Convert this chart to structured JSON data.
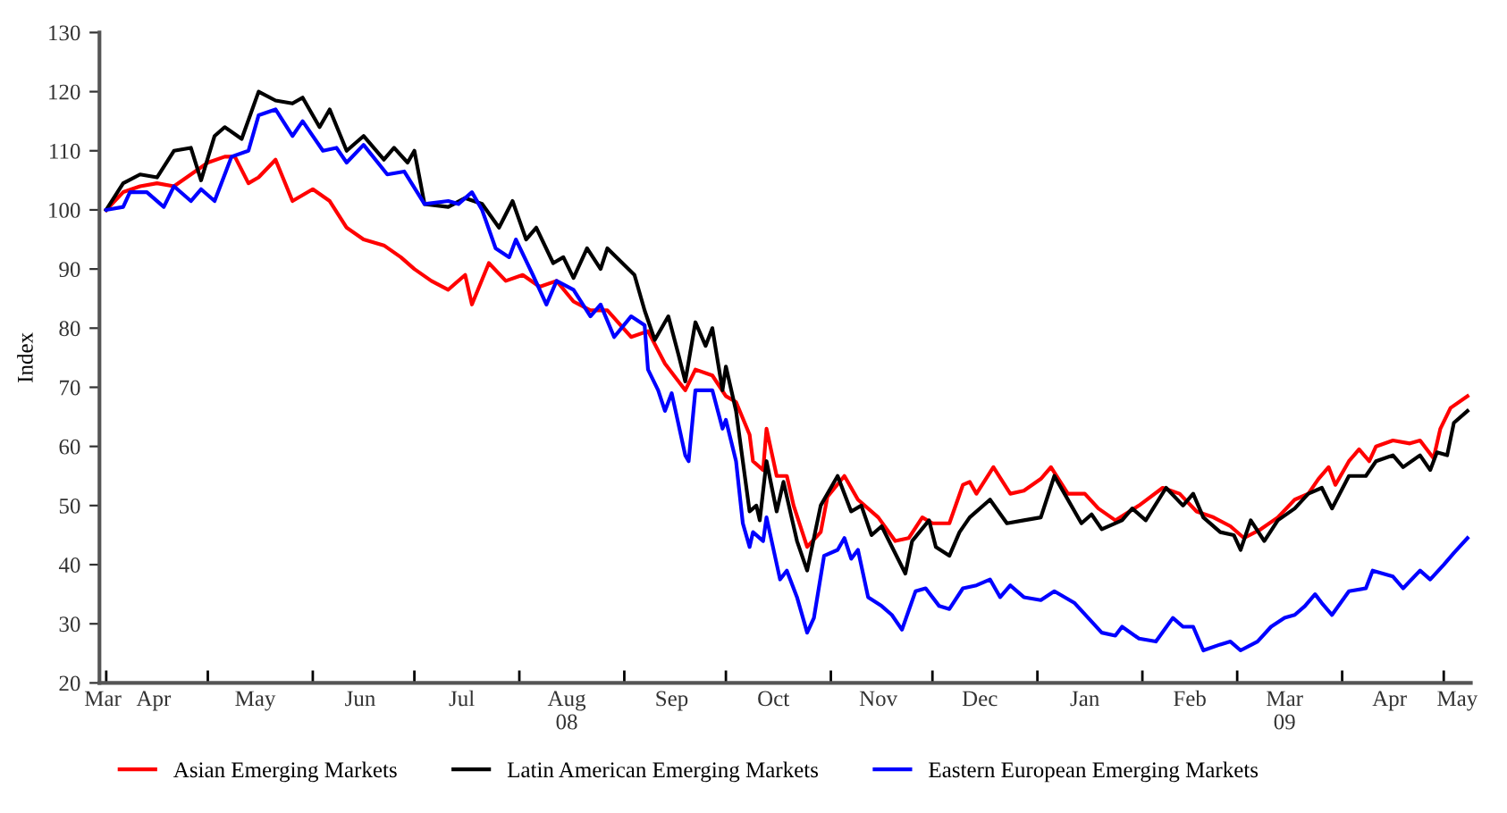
{
  "chart_data": {
    "type": "line",
    "ylabel": "Index",
    "ylim": [
      20,
      130
    ],
    "yticks": [
      20,
      30,
      40,
      50,
      60,
      70,
      80,
      90,
      100,
      110,
      120,
      130
    ],
    "xlim": [
      "2008-03-30",
      "2009-05-09"
    ],
    "xticks": [
      {
        "value": "2008-03-31",
        "label": "Mar"
      },
      {
        "value": "2008-04-15",
        "label": "Apr"
      },
      {
        "value": "2008-05-15",
        "label": "May"
      },
      {
        "value": "2008-06-15",
        "label": "Jun"
      },
      {
        "value": "2008-07-15",
        "label": "Jul"
      },
      {
        "value": "2008-08-15",
        "label": "Aug\n08"
      },
      {
        "value": "2008-09-15",
        "label": "Sep"
      },
      {
        "value": "2008-10-15",
        "label": "Oct"
      },
      {
        "value": "2008-11-15",
        "label": "Nov"
      },
      {
        "value": "2008-12-15",
        "label": "Dec"
      },
      {
        "value": "2009-01-15",
        "label": "Jan"
      },
      {
        "value": "2009-02-15",
        "label": "Feb"
      },
      {
        "value": "2009-03-15",
        "label": "Mar\n09"
      },
      {
        "value": "2009-04-15",
        "label": "Apr"
      },
      {
        "value": "2009-05-05",
        "label": "May"
      },
      {
        "value": "2008-04-01",
        "label": null
      },
      {
        "value": "2008-05-01",
        "label": null
      },
      {
        "value": "2008-06-01",
        "label": null
      },
      {
        "value": "2008-07-01",
        "label": null
      },
      {
        "value": "2008-08-01",
        "label": null
      },
      {
        "value": "2008-09-01",
        "label": null
      },
      {
        "value": "2008-10-01",
        "label": null
      },
      {
        "value": "2008-11-01",
        "label": null
      },
      {
        "value": "2008-12-01",
        "label": null
      },
      {
        "value": "2009-01-01",
        "label": null
      },
      {
        "value": "2009-02-01",
        "label": null
      },
      {
        "value": "2009-03-01",
        "label": null
      },
      {
        "value": "2009-04-01",
        "label": null
      },
      {
        "value": "2009-05-01",
        "label": null
      }
    ],
    "grid": false,
    "legend": "bottom",
    "marker": "none",
    "line_style": "solid",
    "series": [
      {
        "name": "Asian Emerging Markets",
        "color": "#ff0000",
        "x": [
          "2008-04-01",
          "2008-04-06",
          "2008-04-11",
          "2008-04-16",
          "2008-04-21",
          "2008-04-26",
          "2008-05-01",
          "2008-05-06",
          "2008-05-09",
          "2008-05-13",
          "2008-05-16",
          "2008-05-21",
          "2008-05-26",
          "2008-06-01",
          "2008-06-06",
          "2008-06-11",
          "2008-06-16",
          "2008-06-22",
          "2008-06-27",
          "2008-07-01",
          "2008-07-06",
          "2008-07-11",
          "2008-07-16",
          "2008-07-18",
          "2008-07-23",
          "2008-07-28",
          "2008-08-02",
          "2008-08-07",
          "2008-08-12",
          "2008-08-17",
          "2008-08-22",
          "2008-08-27",
          "2008-09-03",
          "2008-09-08",
          "2008-09-13",
          "2008-09-19",
          "2008-09-22",
          "2008-09-27",
          "2008-10-01",
          "2008-10-04",
          "2008-10-08",
          "2008-10-09",
          "2008-10-12",
          "2008-10-13",
          "2008-10-16",
          "2008-10-19",
          "2008-10-21",
          "2008-10-25",
          "2008-10-29",
          "2008-10-31",
          "2008-11-05",
          "2008-11-09",
          "2008-11-15",
          "2008-11-20",
          "2008-11-24",
          "2008-11-28",
          "2008-12-01",
          "2008-12-06",
          "2008-12-10",
          "2008-12-12",
          "2008-12-14",
          "2008-12-19",
          "2008-12-24",
          "2008-12-28",
          "2009-01-02",
          "2009-01-05",
          "2009-01-10",
          "2009-01-15",
          "2009-01-19",
          "2009-01-24",
          "2009-01-31",
          "2009-02-07",
          "2009-02-12",
          "2009-02-17",
          "2009-02-22",
          "2009-02-27",
          "2009-03-03",
          "2009-03-08",
          "2009-03-13",
          "2009-03-18",
          "2009-03-22",
          "2009-03-25",
          "2009-03-28",
          "2009-03-30",
          "2009-04-03",
          "2009-04-06",
          "2009-04-09",
          "2009-04-11",
          "2009-04-16",
          "2009-04-21",
          "2009-04-24",
          "2009-04-28",
          "2009-04-30",
          "2009-05-03",
          "2009-05-08"
        ],
        "values": [
          100,
          103,
          104,
          104.5,
          104,
          106,
          108,
          109,
          109,
          104.5,
          105.5,
          108.5,
          101.5,
          103.5,
          101.5,
          97,
          95,
          94,
          92,
          90,
          88,
          86.5,
          89,
          84,
          91,
          88,
          89,
          87,
          88,
          84.5,
          83,
          83,
          78.5,
          79.5,
          74,
          69.5,
          73,
          72,
          68.5,
          67.5,
          62,
          57.5,
          56,
          63,
          55,
          55,
          50,
          43,
          45.5,
          51.5,
          55,
          51,
          48,
          44,
          44.5,
          48,
          47,
          47,
          53.5,
          54,
          52,
          56.5,
          52,
          52.5,
          54.5,
          56.5,
          52,
          52,
          49.5,
          47.5,
          50,
          53,
          52,
          49,
          48,
          46.5,
          44.5,
          46,
          48,
          51,
          52,
          54.5,
          56.5,
          53.5,
          57.5,
          59.5,
          57.5,
          60,
          61,
          60.5,
          61,
          58,
          63,
          66.5,
          68.5
        ]
      },
      {
        "name": "Latin American Emerging Markets",
        "color": "#000000",
        "x": [
          "2008-04-01",
          "2008-04-06",
          "2008-04-11",
          "2008-04-16",
          "2008-04-21",
          "2008-04-26",
          "2008-04-29",
          "2008-05-03",
          "2008-05-06",
          "2008-05-11",
          "2008-05-16",
          "2008-05-21",
          "2008-05-26",
          "2008-05-29",
          "2008-06-03",
          "2008-06-06",
          "2008-06-11",
          "2008-06-16",
          "2008-06-22",
          "2008-06-25",
          "2008-06-29",
          "2008-07-01",
          "2008-07-04",
          "2008-07-11",
          "2008-07-16",
          "2008-07-21",
          "2008-07-26",
          "2008-07-30",
          "2008-08-03",
          "2008-08-06",
          "2008-08-11",
          "2008-08-14",
          "2008-08-17",
          "2008-08-21",
          "2008-08-25",
          "2008-08-27",
          "2008-09-04",
          "2008-09-07",
          "2008-09-10",
          "2008-09-14",
          "2008-09-17",
          "2008-09-19",
          "2008-09-22",
          "2008-09-25",
          "2008-09-27",
          "2008-09-30",
          "2008-10-01",
          "2008-10-04",
          "2008-10-08",
          "2008-10-10",
          "2008-10-11",
          "2008-10-13",
          "2008-10-16",
          "2008-10-18",
          "2008-10-22",
          "2008-10-25",
          "2008-10-29",
          "2008-11-03",
          "2008-11-07",
          "2008-11-10",
          "2008-11-13",
          "2008-11-16",
          "2008-11-23",
          "2008-11-25",
          "2008-11-30",
          "2008-12-02",
          "2008-12-06",
          "2008-12-09",
          "2008-12-12",
          "2008-12-18",
          "2008-12-23",
          "2008-12-28",
          "2009-01-02",
          "2009-01-06",
          "2009-01-09",
          "2009-01-14",
          "2009-01-17",
          "2009-01-20",
          "2009-01-26",
          "2009-01-29",
          "2009-02-02",
          "2009-02-08",
          "2009-02-13",
          "2009-02-16",
          "2009-02-19",
          "2009-02-24",
          "2009-02-28",
          "2009-03-02",
          "2009-03-05",
          "2009-03-09",
          "2009-03-13",
          "2009-03-18",
          "2009-03-22",
          "2009-03-26",
          "2009-03-29",
          "2009-04-03",
          "2009-04-08",
          "2009-04-11",
          "2009-04-16",
          "2009-04-19",
          "2009-04-24",
          "2009-04-27",
          "2009-04-29",
          "2009-05-02",
          "2009-05-04",
          "2009-05-08"
        ],
        "values": [
          100,
          104.5,
          106,
          105.5,
          110,
          110.5,
          105,
          112.5,
          114,
          112,
          120,
          118.5,
          118,
          119,
          114,
          117,
          110,
          112.5,
          108.5,
          110.5,
          108,
          110,
          101,
          100.5,
          102,
          101,
          97,
          101.5,
          95,
          97,
          91,
          92,
          88.5,
          93.5,
          90,
          93.5,
          89,
          83,
          78,
          82,
          75.5,
          71,
          81,
          77,
          80,
          69.5,
          73.5,
          66,
          49,
          50,
          47.5,
          57.5,
          49,
          54,
          44,
          39,
          50,
          55,
          49,
          50,
          45,
          46.5,
          38.5,
          44,
          47.5,
          43,
          41.5,
          45.5,
          48,
          51,
          47,
          47.5,
          48,
          55,
          52,
          47,
          48.5,
          46,
          47.5,
          49.5,
          47.5,
          53,
          50,
          52,
          48,
          45.5,
          45,
          42.5,
          47.5,
          44,
          47.5,
          49.5,
          52,
          53,
          49.5,
          55,
          55,
          57.5,
          58.5,
          56.5,
          58.5,
          56,
          59,
          58.5,
          64,
          66
        ]
      },
      {
        "name": "Eastern European Emerging Markets",
        "color": "#0000ff",
        "x": [
          "2008-04-01",
          "2008-04-06",
          "2008-04-08",
          "2008-04-13",
          "2008-04-18",
          "2008-04-21",
          "2008-04-26",
          "2008-04-29",
          "2008-05-03",
          "2008-05-08",
          "2008-05-13",
          "2008-05-16",
          "2008-05-21",
          "2008-05-26",
          "2008-05-29",
          "2008-06-04",
          "2008-06-08",
          "2008-06-11",
          "2008-06-16",
          "2008-06-23",
          "2008-06-28",
          "2008-07-04",
          "2008-07-11",
          "2008-07-14",
          "2008-07-18",
          "2008-07-21",
          "2008-07-25",
          "2008-07-29",
          "2008-07-31",
          "2008-08-05",
          "2008-08-09",
          "2008-08-12",
          "2008-08-17",
          "2008-08-22",
          "2008-08-25",
          "2008-08-29",
          "2008-09-03",
          "2008-09-07",
          "2008-09-08",
          "2008-09-11",
          "2008-09-13",
          "2008-09-15",
          "2008-09-19",
          "2008-09-20",
          "2008-09-22",
          "2008-09-27",
          "2008-09-30",
          "2008-10-01",
          "2008-10-04",
          "2008-10-06",
          "2008-10-08",
          "2008-10-09",
          "2008-10-12",
          "2008-10-13",
          "2008-10-17",
          "2008-10-19",
          "2008-10-22",
          "2008-10-25",
          "2008-10-27",
          "2008-10-30",
          "2008-11-03",
          "2008-11-05",
          "2008-11-07",
          "2008-11-09",
          "2008-11-12",
          "2008-11-16",
          "2008-11-19",
          "2008-11-22",
          "2008-11-26",
          "2008-11-29",
          "2008-12-03",
          "2008-12-06",
          "2008-12-10",
          "2008-12-14",
          "2008-12-18",
          "2008-12-21",
          "2008-12-24",
          "2008-12-28",
          "2009-01-02",
          "2009-01-06",
          "2009-01-12",
          "2009-01-16",
          "2009-01-20",
          "2009-01-24",
          "2009-01-26",
          "2009-01-31",
          "2009-02-05",
          "2009-02-10",
          "2009-02-13",
          "2009-02-16",
          "2009-02-19",
          "2009-02-24",
          "2009-02-27",
          "2009-03-02",
          "2009-03-07",
          "2009-03-11",
          "2009-03-15",
          "2009-03-18",
          "2009-03-21",
          "2009-03-24",
          "2009-03-26",
          "2009-03-29",
          "2009-04-03",
          "2009-04-08",
          "2009-04-10",
          "2009-04-16",
          "2009-04-19",
          "2009-04-24",
          "2009-04-27",
          "2009-05-01",
          "2009-05-04",
          "2009-05-08"
        ],
        "values": [
          100,
          100.5,
          103,
          103,
          100.5,
          104,
          101.5,
          103.5,
          101.5,
          109,
          110,
          116,
          117,
          112.5,
          115,
          110,
          110.5,
          108,
          111,
          106,
          106.5,
          101,
          101.5,
          101,
          103,
          100,
          93.5,
          92,
          95,
          89,
          84,
          88,
          86.5,
          82,
          84,
          78.5,
          82,
          80.5,
          73,
          69.5,
          66,
          69,
          58.5,
          57.5,
          69.5,
          69.5,
          63,
          64.5,
          57.5,
          47,
          43,
          45.5,
          44,
          48,
          37.5,
          39,
          34.5,
          28.5,
          31,
          41.5,
          42.5,
          44.5,
          41,
          42.5,
          34.5,
          33,
          31.5,
          29,
          35.5,
          36,
          33,
          32.5,
          36,
          36.5,
          37.5,
          34.5,
          36.5,
          34.5,
          34,
          35.5,
          33.5,
          31,
          28.5,
          28,
          29.5,
          27.5,
          27,
          31,
          29.5,
          29.5,
          25.5,
          26.5,
          27,
          25.5,
          27,
          29.5,
          31,
          31.5,
          33,
          35,
          33.5,
          31.5,
          35.5,
          36,
          39,
          38,
          36,
          39,
          37.5,
          40,
          42,
          44.5
        ]
      }
    ]
  }
}
